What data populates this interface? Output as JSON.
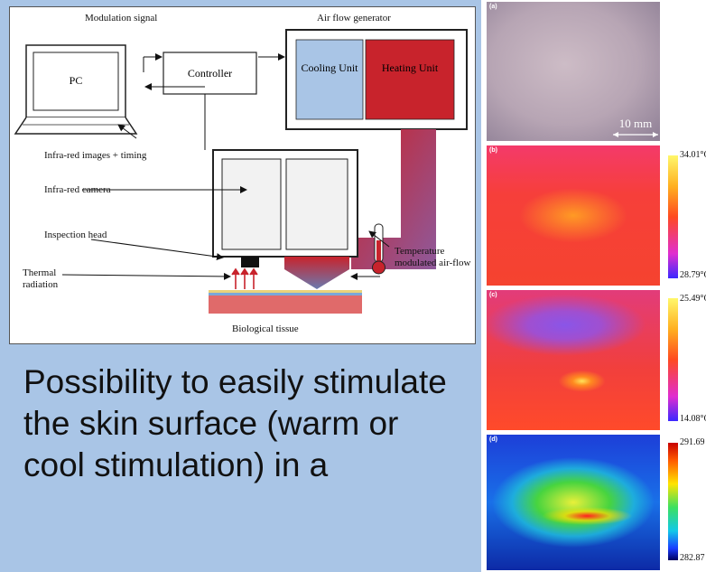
{
  "schematic": {
    "labels": {
      "modulation_signal": "Modulation signal",
      "air_flow_generator": "Air flow generator",
      "pc": "PC",
      "controller": "Controller",
      "cooling_unit": "Cooling Unit",
      "heating_unit": "Heating Unit",
      "infrared_images": "Infra-red images + timing",
      "infrared_camera": "Infra-red camera",
      "inspection_head": "Inspection head",
      "temperature_airflow": "Temperature modulated air-flow",
      "thermal_radiation": "Thermal radiation",
      "biological_tissue": "Biological tissue"
    },
    "colors": {
      "cooling": "#a9c5e6",
      "heating": "#c8232c"
    }
  },
  "caption": "Possibility to easily stimulate the skin surface (warm or cool stimulation) in a",
  "panels": [
    {
      "label": "(a)",
      "scale_text": "10 mm"
    },
    {
      "label": "(b)",
      "max": "34.01°C",
      "min": "28.79°C"
    },
    {
      "label": "(c)",
      "max": "25.49°C",
      "min": "14.08°C"
    },
    {
      "label": "(d)",
      "max": "291.69",
      "min": "282.87"
    }
  ]
}
